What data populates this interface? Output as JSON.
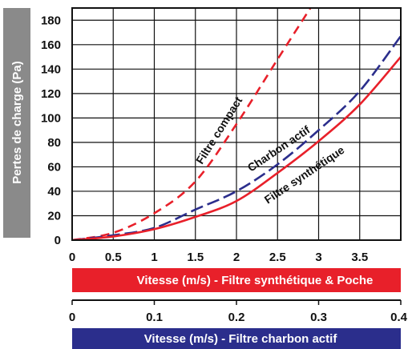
{
  "chart_data": {
    "type": "line",
    "ylabel": "Pertes de charge (Pa)",
    "ylim": [
      0,
      190
    ],
    "yticks": [
      0,
      20,
      40,
      60,
      80,
      100,
      120,
      140,
      160,
      180
    ],
    "grid": true,
    "x_axis_primary": {
      "label": "Vitesse (m/s) - Filtre synthétique & Poche",
      "range": [
        0,
        4
      ],
      "ticks": [
        "0",
        "0.5",
        "1",
        "1.5",
        "2",
        "2.5",
        "3",
        "3.5"
      ],
      "tick_values": [
        0,
        0.5,
        1,
        1.5,
        2,
        2.5,
        3,
        3.5
      ],
      "bar_color": "#e8202a"
    },
    "x_axis_secondary": {
      "label": "Vitesse (m/s) - Filtre charbon actif",
      "range": [
        0,
        0.4
      ],
      "ticks": [
        "0",
        "0.1",
        "0.2",
        "0.3",
        "0.4"
      ],
      "tick_values": [
        0,
        0.1,
        0.2,
        0.3,
        0.4
      ],
      "bar_color": "#2b2e8c"
    },
    "series": [
      {
        "name": "Filtre compact",
        "color": "#e8202a",
        "style": "dashed",
        "x": [
          0,
          0.5,
          1,
          1.5,
          2,
          2.5,
          2.9
        ],
        "y": [
          0,
          6,
          22,
          48,
          95,
          148,
          190
        ]
      },
      {
        "name": "Charbon actif",
        "color": "#2b2e8c",
        "style": "dashed",
        "x": [
          0,
          0.5,
          1,
          1.5,
          2,
          2.5,
          3,
          3.5,
          4
        ],
        "y": [
          0,
          4,
          10,
          25,
          40,
          62,
          90,
          122,
          167
        ]
      },
      {
        "name": "Filtre synthétique",
        "color": "#e8202a",
        "style": "solid",
        "x": [
          0,
          0.5,
          1,
          1.5,
          2,
          2.5,
          3,
          3.5,
          4
        ],
        "y": [
          0,
          3,
          9,
          19,
          32,
          55,
          81,
          111,
          150
        ]
      }
    ]
  }
}
